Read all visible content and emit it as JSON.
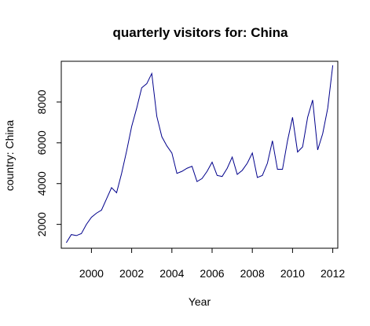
{
  "chart_data": {
    "type": "line",
    "title": "quarterly visitors for: China",
    "xlabel": "Year",
    "ylabel": "country: China",
    "xlim": [
      1998.5,
      2012.25
    ],
    "ylim": [
      830,
      10000
    ],
    "x_ticks": [
      2000,
      2002,
      2004,
      2006,
      2008,
      2010,
      2012
    ],
    "y_ticks": [
      2000,
      4000,
      6000,
      8000
    ],
    "grid": false,
    "legend": "none",
    "series": [
      {
        "color": "#00008B",
        "x": [
          1998.75,
          1999.0,
          1999.25,
          1999.5,
          1999.75,
          2000.0,
          2000.25,
          2000.5,
          2000.75,
          2001.0,
          2001.25,
          2001.5,
          2001.75,
          2002.0,
          2002.25,
          2002.5,
          2002.75,
          2003.0,
          2003.25,
          2003.5,
          2003.75,
          2004.0,
          2004.25,
          2004.5,
          2004.75,
          2005.0,
          2005.25,
          2005.5,
          2005.75,
          2006.0,
          2006.25,
          2006.5,
          2006.75,
          2007.0,
          2007.25,
          2007.5,
          2007.75,
          2008.0,
          2008.25,
          2008.5,
          2008.75,
          2009.0,
          2009.25,
          2009.5,
          2009.75,
          2010.0,
          2010.25,
          2010.5,
          2010.75,
          2011.0,
          2011.25,
          2011.5,
          2011.75,
          2012.0
        ],
        "y": [
          1100,
          1500,
          1450,
          1550,
          2000,
          2350,
          2550,
          2700,
          3250,
          3800,
          3550,
          4500,
          5600,
          6800,
          7700,
          8700,
          8900,
          9400,
          7300,
          6300,
          5850,
          5500,
          4500,
          4600,
          4750,
          4850,
          4100,
          4250,
          4600,
          5050,
          4400,
          4350,
          4750,
          5300,
          4450,
          4650,
          5000,
          5500,
          4300,
          4400,
          5000,
          6100,
          4700,
          4700,
          6100,
          7250,
          5550,
          5800,
          7250,
          8100,
          5650,
          6450,
          7700,
          9800
        ]
      }
    ]
  }
}
